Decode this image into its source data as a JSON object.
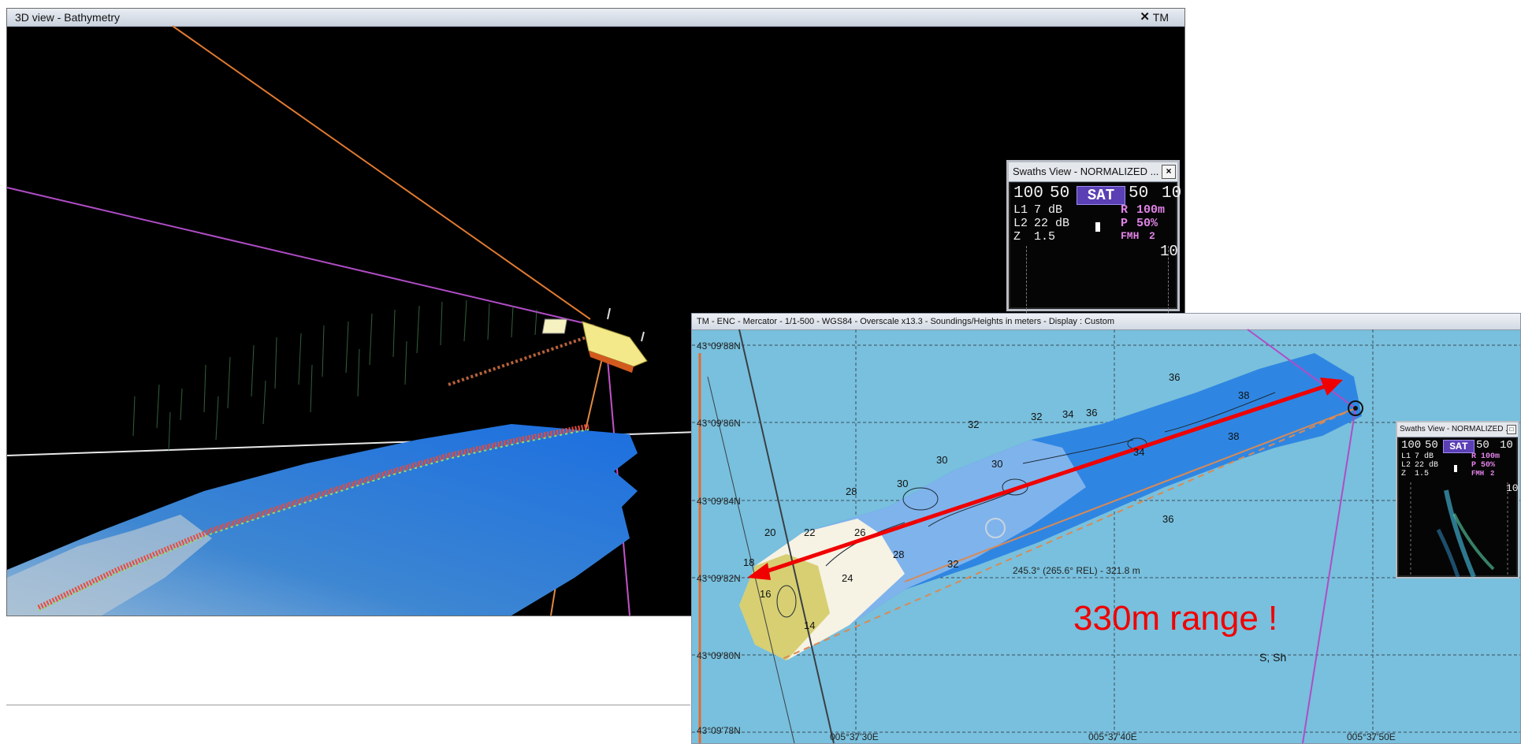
{
  "view3d": {
    "title": "3D view - Bathymetry",
    "close_glyph": "✕",
    "tab": "TM"
  },
  "swath_small": {
    "title": "Swaths View - NORMALIZED ...",
    "close_glyph": "×",
    "scale_left": [
      "100",
      "50"
    ],
    "scale_right": [
      "50",
      "10"
    ],
    "sat_label": "SAT",
    "rows": [
      {
        "label": "L1",
        "value": "7 dB"
      },
      {
        "label": "L2",
        "value": "22 dB"
      },
      {
        "label": "Z",
        "value": "1.5"
      }
    ],
    "params": [
      {
        "label": "R",
        "value": "100m"
      },
      {
        "label": "P",
        "value": "50%"
      },
      {
        "label": "FMH",
        "value": "2"
      }
    ],
    "side_scale": "10"
  },
  "chart": {
    "title": "TM  -  ENC  -  Mercator  -  1/1-500  -  WGS84  -  Overscale x13.3  -  Soundings/Heights in meters  -  Display : Custom",
    "lat_labels": [
      "43°09'88N",
      "43°09'86N",
      "43°09'84N",
      "43°09'82N",
      "43°09'80N",
      "43°09'78N"
    ],
    "lon_labels": [
      "005°37'30E",
      "005°37'40E",
      "005°37'50E"
    ],
    "depth_labels": [
      "38",
      "36",
      "36",
      "38",
      "34",
      "34",
      "32",
      "32",
      "30",
      "30",
      "30",
      "28",
      "28",
      "26",
      "24",
      "22",
      "20",
      "18",
      "16",
      "14",
      "32",
      "36"
    ],
    "bearing_text": "245.3° (265.6° REL) - 321.8 m",
    "range_annotation": "330m range !",
    "symbol_text": "S, Sh",
    "colors": {
      "sea": "#78c0dd",
      "deep": "#2f86e2",
      "mid": "#7fb3ec",
      "shallow": "#f6f2e4",
      "very_shallow": "#d7cf72",
      "arrow": "#f00000"
    }
  },
  "swath_large": {
    "title": "Swaths View - NORMALIZED ...",
    "close_glyph": "□",
    "scale_left": [
      "100",
      "50"
    ],
    "scale_right": [
      "50",
      "10"
    ],
    "sat_label": "SAT",
    "rows": [
      {
        "label": "L1",
        "value": "7 dB"
      },
      {
        "label": "L2",
        "value": "22 dB"
      },
      {
        "label": "Z",
        "value": "1.5"
      }
    ],
    "params": [
      {
        "label": "R",
        "value": "100m"
      },
      {
        "label": "P",
        "value": "50%"
      },
      {
        "label": "FMH",
        "value": "2"
      }
    ],
    "side_scale": "10"
  }
}
